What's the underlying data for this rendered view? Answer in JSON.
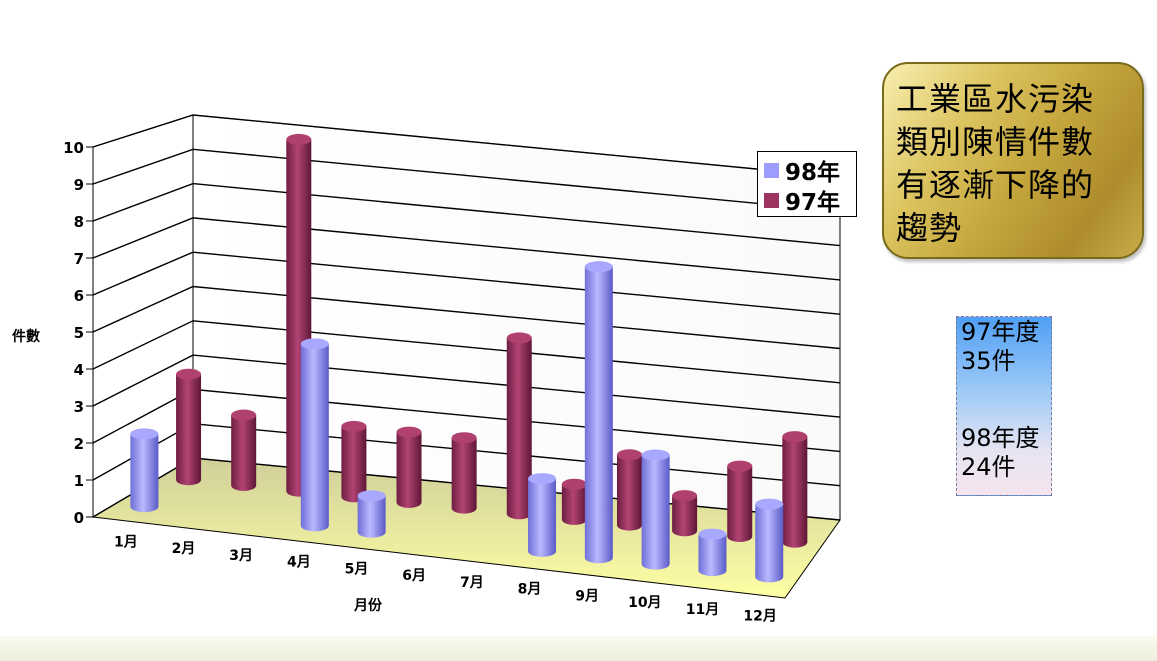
{
  "chart_data": {
    "type": "bar",
    "categories": [
      "1月",
      "2月",
      "3月",
      "4月",
      "5月",
      "6月",
      "7月",
      "8月",
      "9月",
      "10月",
      "11月",
      "12月"
    ],
    "series": [
      {
        "name": "98年",
        "color": "#9c9cff",
        "values": [
          2,
          0,
          0,
          5,
          1,
          0,
          0,
          2,
          8,
          3,
          1,
          2
        ]
      },
      {
        "name": "97年",
        "color": "#9e3462",
        "values": [
          3,
          2,
          10,
          2,
          2,
          2,
          5,
          1,
          2,
          1,
          2,
          3
        ]
      }
    ],
    "xlabel": "月份",
    "ylabel": "件數",
    "ylim": [
      0,
      10
    ],
    "yticks": [
      "0",
      "1",
      "2",
      "3",
      "4",
      "5",
      "6",
      "7",
      "8",
      "9",
      "10"
    ],
    "grid": true,
    "legend": "top-right"
  },
  "note": {
    "lines": [
      "工業區水污染",
      "類別陳情件數",
      "有逐漸下降的",
      "趨勢"
    ]
  },
  "summary": {
    "y97_label": "97年度",
    "y97_count": "35件",
    "y98_label": "98年度",
    "y98_count": "24件"
  }
}
